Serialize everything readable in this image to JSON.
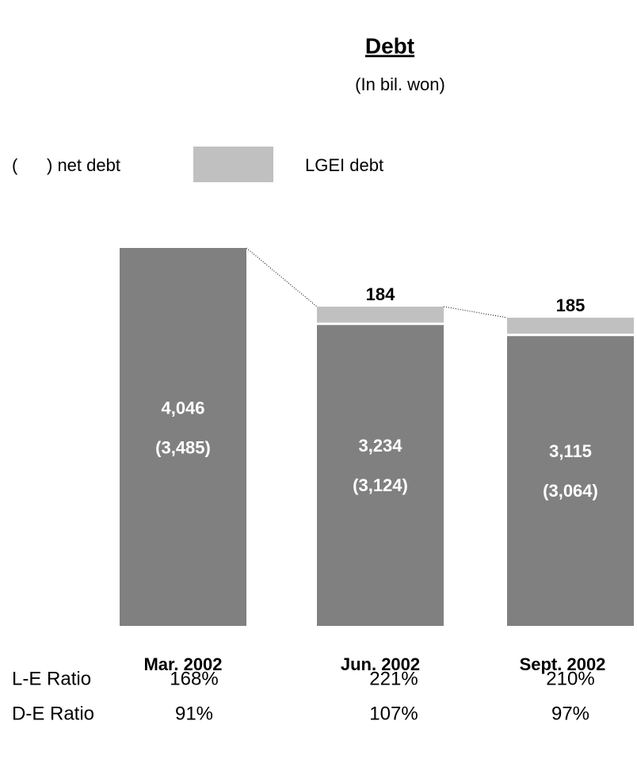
{
  "chart_data": {
    "type": "stacked_bar",
    "title": "Debt",
    "subtitle": "(In bil. won)",
    "categories": [
      "Mar. 2002",
      "Jun. 2002",
      "Sept. 2002"
    ],
    "series": [
      {
        "name": "debt",
        "color": "#808080",
        "values": [
          4046,
          3234,
          3115
        ],
        "value_labels": [
          "4,046",
          "3,234",
          "3,115"
        ]
      },
      {
        "name": "LGEI debt",
        "color": "#c0c0c0",
        "values": [
          null,
          184,
          185
        ]
      }
    ],
    "net_debt": {
      "name": "(      ) net debt",
      "values": [
        3485,
        3124,
        3064
      ],
      "value_labels": [
        "(3,485)",
        "(3,124)",
        "(3,064)"
      ]
    },
    "ratios": [
      {
        "name": "L-E Ratio",
        "values": [
          168,
          221,
          210
        ],
        "value_labels": [
          "168%",
          "221%",
          "210%"
        ]
      },
      {
        "name": "D-E Ratio",
        "values": [
          91,
          107,
          97
        ],
        "value_labels": [
          "91%",
          "107%",
          "97%"
        ]
      }
    ]
  }
}
